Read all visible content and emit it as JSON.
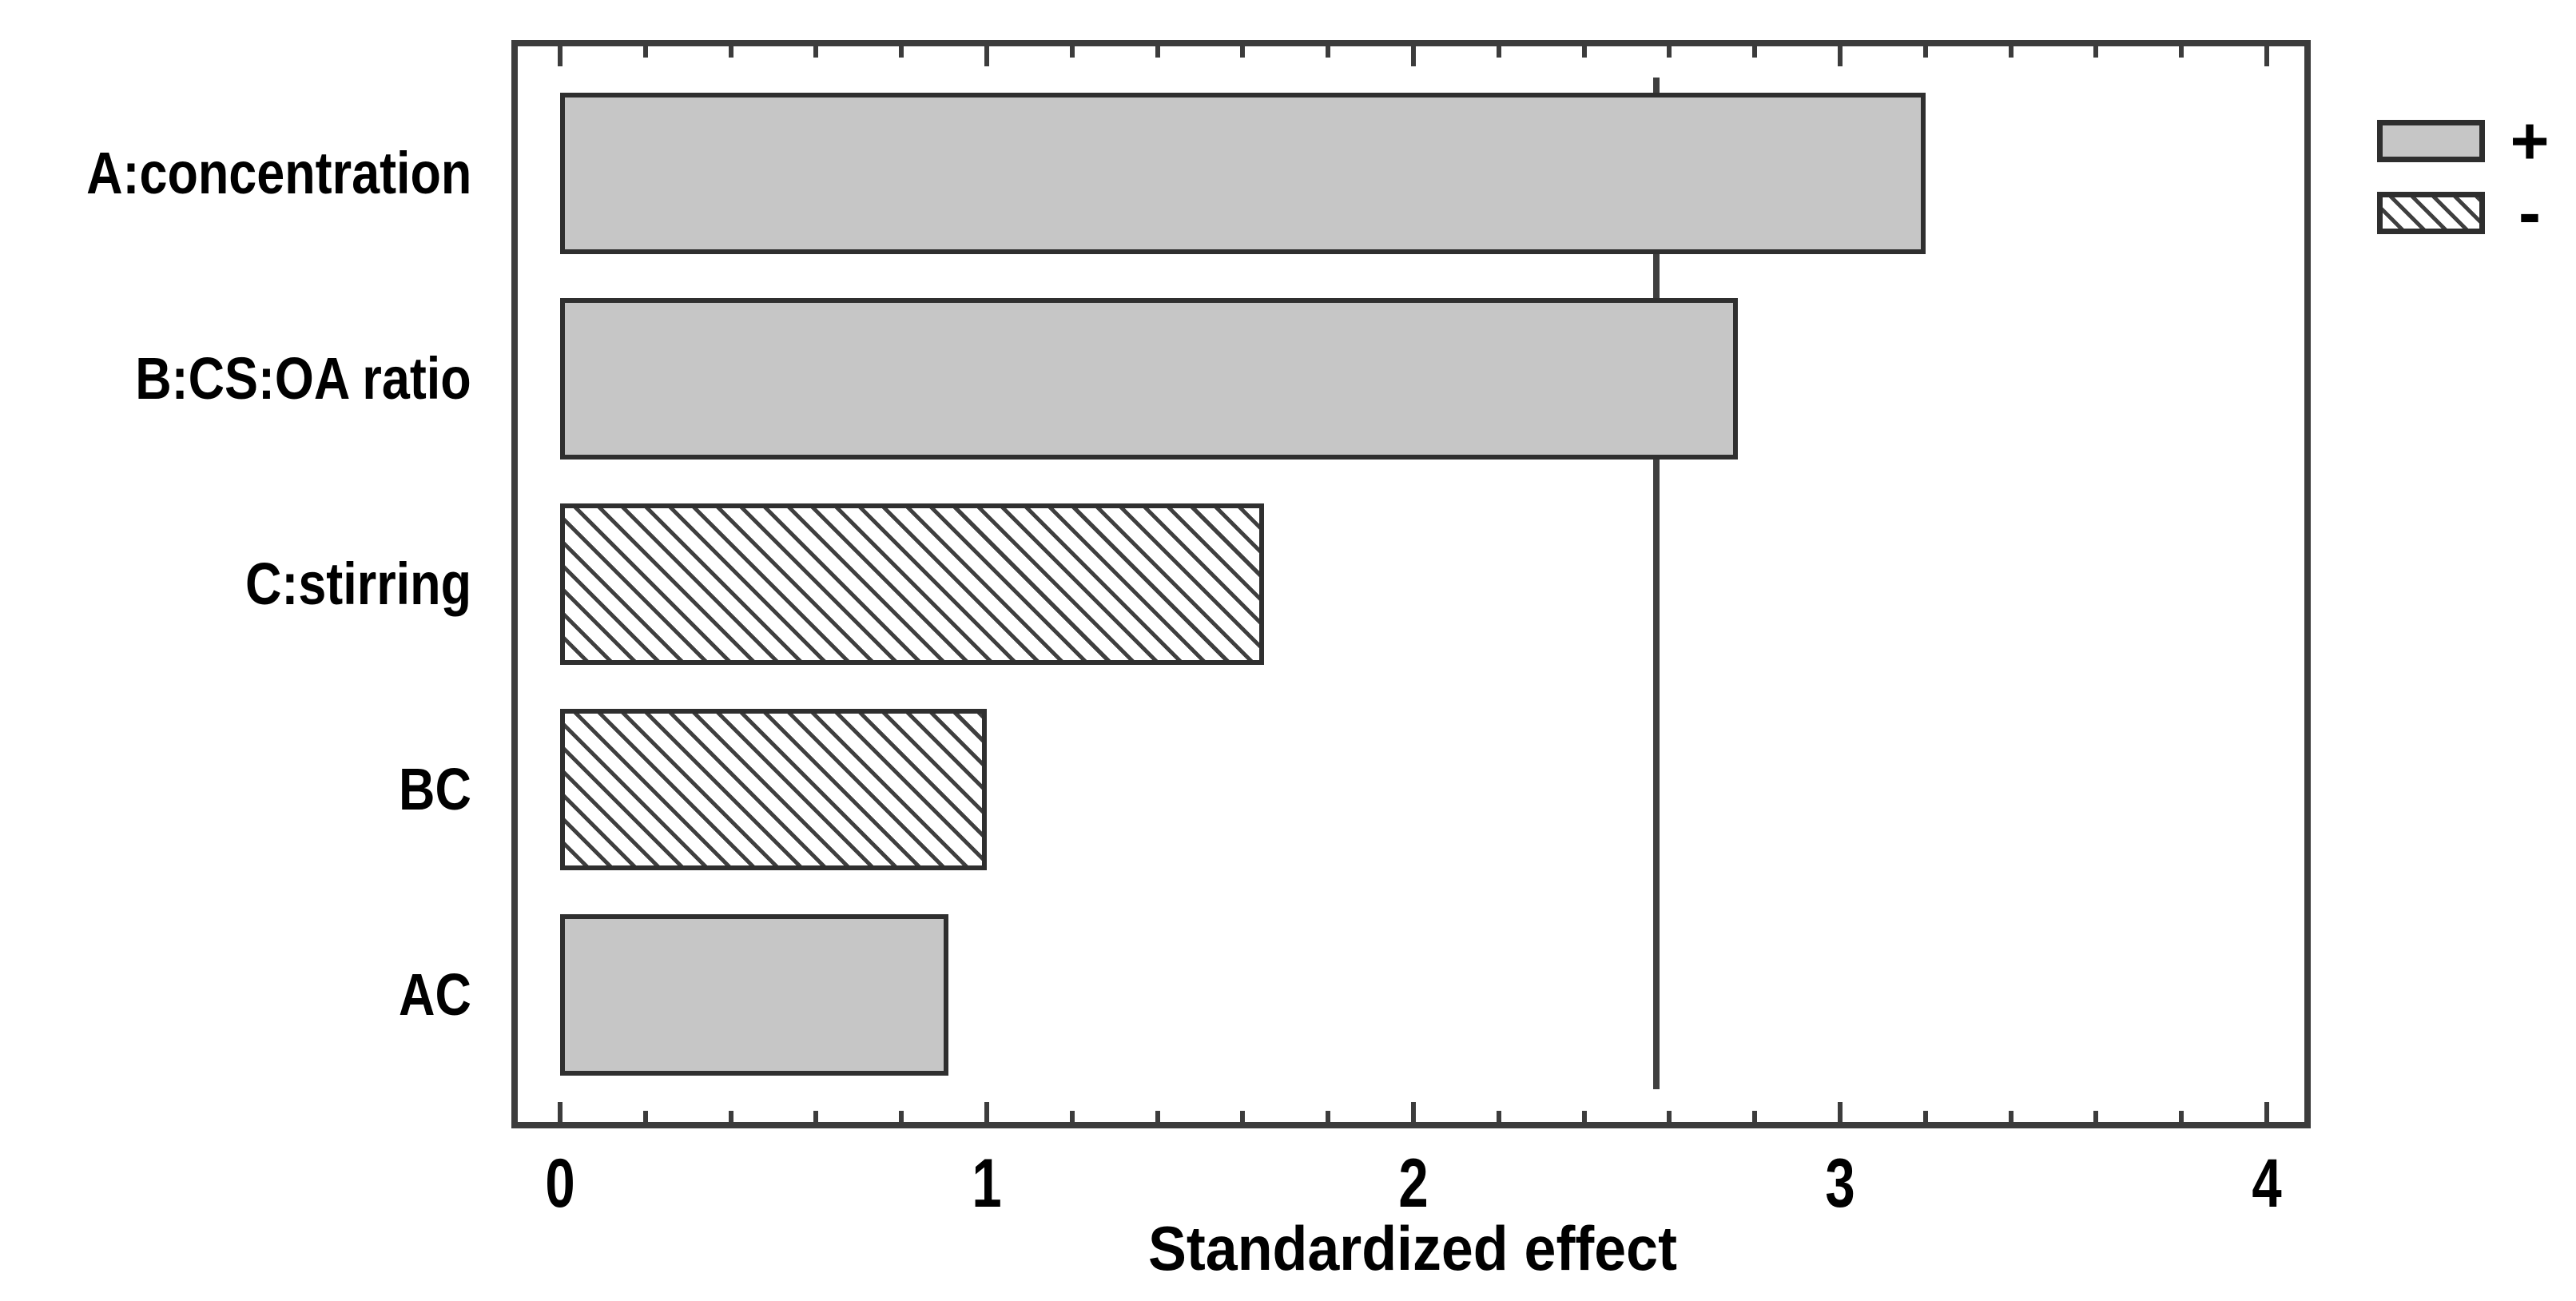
{
  "chart_data": {
    "type": "bar",
    "orientation": "horizontal",
    "title": "",
    "xlabel": "Standardized effect",
    "ylabel": "",
    "categories": [
      "A:concentration",
      "B:CS:OA ratio",
      "C:stirring",
      "BC",
      "AC"
    ],
    "series": [
      {
        "name": "standardized effect",
        "values": [
          3.2,
          2.76,
          1.65,
          1.0,
          0.91
        ]
      }
    ],
    "signs": [
      "+",
      "+",
      "-",
      "-",
      "+"
    ],
    "bar_patterns": [
      "solid",
      "solid",
      "hatched",
      "hatched",
      "solid"
    ],
    "reference_line": {
      "x": 2.57
    },
    "xlim": [
      0,
      4.12
    ],
    "x_major_ticks": [
      0,
      1,
      2,
      3,
      4
    ],
    "x_minor_tick_step": 0.2,
    "grid": "off",
    "legend": {
      "position": "top-right",
      "entries": [
        {
          "label": "+",
          "pattern": "solid"
        },
        {
          "label": "-",
          "pattern": "hatched"
        }
      ]
    },
    "colors": {
      "bar_fill": "#c6c6c6",
      "bar_border": "#2f2f2f",
      "hatch_line": "#3f3f3f",
      "axis": "#3c3c3c",
      "text": "#000000",
      "background": "#ffffff"
    }
  }
}
